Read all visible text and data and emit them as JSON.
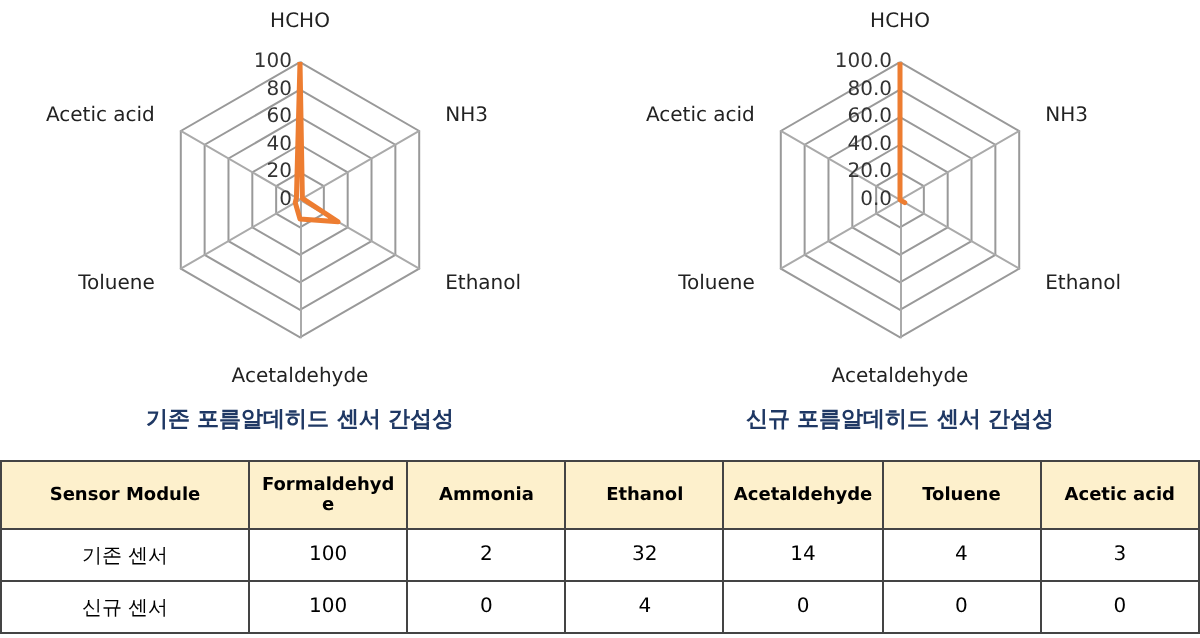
{
  "chart_data": [
    {
      "type": "radar",
      "title": "기존 포름알데히드 센서 간섭성",
      "categories": [
        "HCHO",
        "NH3",
        "Ethanol",
        "Acetaldehyde",
        "Toluene",
        "Acetic acid"
      ],
      "ylim": [
        0,
        100
      ],
      "yticks": [
        0,
        20,
        40,
        60,
        80,
        100
      ],
      "grid": true,
      "marker": "none",
      "series": [
        {
          "color": "#ed7d31",
          "values": [
            100,
            2,
            32,
            14,
            4,
            3
          ]
        }
      ]
    },
    {
      "type": "radar",
      "title": "신규 포름알데히드 센서 간섭성",
      "categories": [
        "HCHO",
        "NH3",
        "Ethanol",
        "Acetaldehyde",
        "Toluene",
        "Acetic acid"
      ],
      "ylim": [
        0,
        100
      ],
      "yticks": [
        {
          "value": 0,
          "label": "0.0"
        },
        {
          "value": 20,
          "label": "20.0"
        },
        {
          "value": 40,
          "label": "40.0"
        },
        {
          "value": 60,
          "label": "60.0"
        },
        {
          "value": 80,
          "label": "80.0"
        },
        {
          "value": 100,
          "label": "100.0"
        }
      ],
      "grid": true,
      "marker": "none",
      "series": [
        {
          "color": "#ed7d31",
          "values": [
            100,
            0,
            4,
            0,
            0,
            0
          ]
        }
      ]
    },
    {
      "type": "other",
      "xlabel": "Sensor Module",
      "categories": [
        "Formaldehyde",
        "Ammonia",
        "Ethanol",
        "Acetaldehyde",
        "Toluene",
        "Acetic acid"
      ],
      "data_labels": true,
      "series": [
        {
          "name": "기존 센서",
          "values": [
            100,
            2,
            32,
            14,
            4,
            3
          ]
        },
        {
          "name": "신규 센서",
          "values": [
            100,
            0,
            4,
            0,
            0,
            0
          ]
        }
      ]
    }
  ]
}
